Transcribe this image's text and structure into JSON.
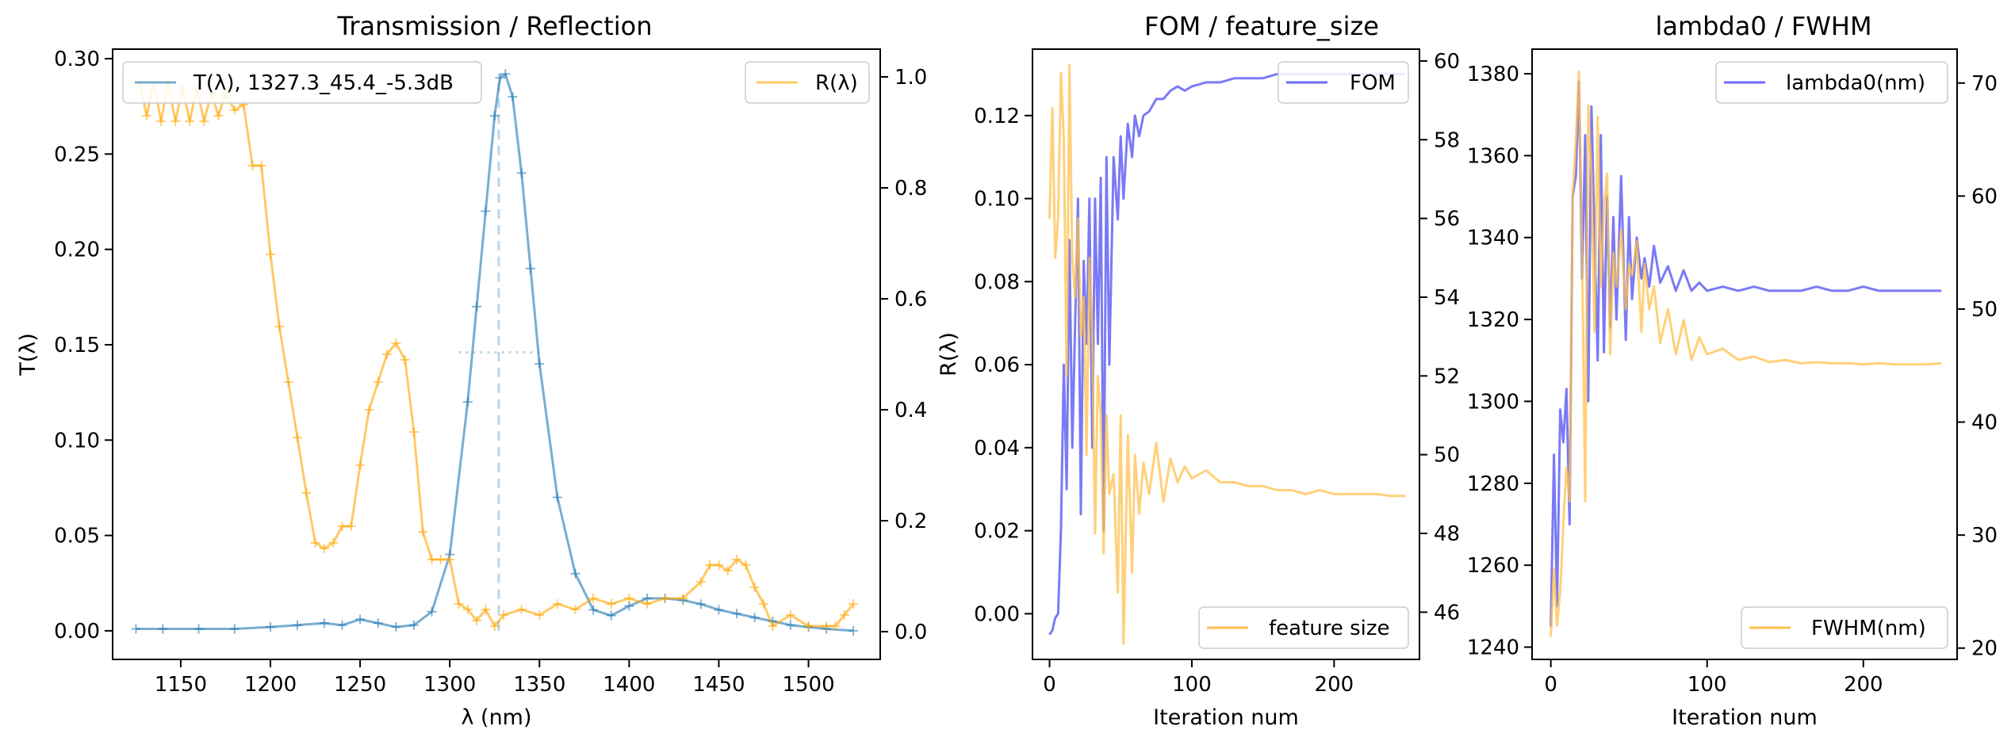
{
  "chart_data": [
    {
      "type": "line",
      "title": "Transmission / Reflection",
      "xlabel": "λ (nm)",
      "ylabel": "T(λ)",
      "xlim": [
        1112,
        1540
      ],
      "ylim": [
        -0.015,
        0.305
      ],
      "y2lim": [
        -0.05,
        1.05
      ],
      "xticks": [
        1150,
        1200,
        1250,
        1300,
        1350,
        1400,
        1450,
        1500
      ],
      "yticks": [
        0.0,
        0.05,
        0.1,
        0.15,
        0.2,
        0.25,
        0.3
      ],
      "y2ticks": [
        0.0,
        0.2,
        0.4,
        0.6,
        0.8,
        1.0
      ],
      "grid": false,
      "series": [
        {
          "name": "T(λ), 1327.3_45.4_-5.3dB",
          "axis": "left",
          "color": "#1f77b4",
          "x": [
            1125,
            1140,
            1160,
            1180,
            1200,
            1215,
            1230,
            1240,
            1250,
            1260,
            1270,
            1280,
            1290,
            1300,
            1310,
            1315,
            1320,
            1325,
            1328,
            1331,
            1335,
            1340,
            1345,
            1350,
            1360,
            1370,
            1380,
            1390,
            1400,
            1410,
            1420,
            1430,
            1440,
            1450,
            1460,
            1470,
            1480,
            1490,
            1500,
            1510,
            1525
          ],
          "values": [
            0.001,
            0.001,
            0.001,
            0.001,
            0.002,
            0.003,
            0.004,
            0.003,
            0.006,
            0.004,
            0.002,
            0.003,
            0.01,
            0.04,
            0.12,
            0.17,
            0.22,
            0.27,
            0.29,
            0.292,
            0.28,
            0.24,
            0.19,
            0.14,
            0.07,
            0.03,
            0.011,
            0.008,
            0.013,
            0.017,
            0.017,
            0.016,
            0.014,
            0.011,
            0.009,
            0.007,
            0.005,
            0.003,
            0.002,
            0.001,
            0.0
          ]
        },
        {
          "name": "R(λ)",
          "axis": "right",
          "color": "#ffa500",
          "x": [
            1127,
            1131,
            1135,
            1139,
            1143,
            1147,
            1151,
            1155,
            1159,
            1163,
            1167,
            1171,
            1175,
            1180,
            1185,
            1190,
            1195,
            1200,
            1205,
            1210,
            1215,
            1220,
            1225,
            1230,
            1235,
            1240,
            1245,
            1250,
            1255,
            1260,
            1265,
            1270,
            1275,
            1280,
            1285,
            1290,
            1295,
            1300,
            1305,
            1310,
            1315,
            1320,
            1325,
            1330,
            1340,
            1350,
            1360,
            1370,
            1380,
            1390,
            1400,
            1410,
            1420,
            1430,
            1440,
            1445,
            1450,
            1455,
            1460,
            1465,
            1470,
            1475,
            1480,
            1490,
            1500,
            1510,
            1515,
            1520,
            1525
          ],
          "values": [
            0.99,
            0.93,
            0.99,
            0.92,
            0.99,
            0.92,
            0.98,
            0.92,
            0.98,
            0.92,
            0.97,
            0.93,
            0.97,
            0.94,
            0.95,
            0.84,
            0.84,
            0.68,
            0.55,
            0.45,
            0.35,
            0.25,
            0.16,
            0.15,
            0.16,
            0.19,
            0.19,
            0.3,
            0.4,
            0.45,
            0.5,
            0.52,
            0.49,
            0.36,
            0.18,
            0.13,
            0.13,
            0.13,
            0.05,
            0.04,
            0.02,
            0.04,
            0.01,
            0.03,
            0.04,
            0.03,
            0.05,
            0.04,
            0.06,
            0.05,
            0.06,
            0.05,
            0.06,
            0.06,
            0.09,
            0.12,
            0.12,
            0.11,
            0.13,
            0.12,
            0.08,
            0.05,
            0.01,
            0.03,
            0.01,
            0.01,
            0.01,
            0.03,
            0.05
          ]
        }
      ],
      "annotations": [
        {
          "type": "vline",
          "x": 1327.3,
          "y_range": [
            0,
            0.292
          ]
        },
        {
          "type": "hline",
          "y": 0.146,
          "x_range": [
            1305,
            1350
          ]
        }
      ],
      "legend_left": "upper left",
      "legend_right": "upper right"
    },
    {
      "type": "line",
      "title": "FOM / feature_size",
      "xlabel": "Iteration num",
      "ylabel": "R(λ)",
      "xlim": [
        -12,
        260
      ],
      "ylim": [
        -0.011,
        0.136
      ],
      "y2lim": [
        44.8,
        60.3
      ],
      "xticks": [
        0,
        100,
        200
      ],
      "yticks": [
        0.0,
        0.02,
        0.04,
        0.06,
        0.08,
        0.1,
        0.12
      ],
      "y2ticks": [
        46,
        48,
        50,
        52,
        54,
        56,
        58,
        60
      ],
      "series": [
        {
          "name": "FOM",
          "axis": "left",
          "color": "#6b6bf5",
          "x": [
            0,
            2,
            4,
            6,
            8,
            10,
            12,
            14,
            16,
            18,
            20,
            22,
            24,
            26,
            28,
            30,
            32,
            34,
            36,
            38,
            40,
            42,
            45,
            48,
            50,
            52,
            55,
            58,
            60,
            63,
            66,
            70,
            75,
            80,
            85,
            90,
            95,
            100,
            110,
            120,
            130,
            140,
            150,
            160,
            170,
            180,
            190,
            200,
            210,
            220,
            230,
            240,
            250
          ],
          "values": [
            -0.005,
            -0.004,
            -0.001,
            0.0,
            0.02,
            0.06,
            0.03,
            0.09,
            0.04,
            0.07,
            0.1,
            0.024,
            0.085,
            0.065,
            0.1,
            0.04,
            0.1,
            0.065,
            0.105,
            0.02,
            0.11,
            0.06,
            0.11,
            0.095,
            0.115,
            0.1,
            0.118,
            0.11,
            0.12,
            0.115,
            0.12,
            0.121,
            0.124,
            0.124,
            0.126,
            0.127,
            0.126,
            0.127,
            0.128,
            0.128,
            0.129,
            0.129,
            0.129,
            0.13,
            0.13,
            0.13,
            0.13,
            0.13,
            0.13,
            0.13,
            0.13,
            0.13,
            0.13
          ]
        },
        {
          "name": "feature size",
          "axis": "right",
          "color": "#ffc04d",
          "x": [
            0,
            2,
            4,
            6,
            8,
            10,
            12,
            14,
            16,
            18,
            20,
            22,
            24,
            26,
            28,
            30,
            32,
            34,
            36,
            38,
            40,
            42,
            45,
            48,
            50,
            52,
            55,
            58,
            60,
            63,
            66,
            70,
            75,
            80,
            85,
            90,
            95,
            100,
            110,
            120,
            130,
            140,
            150,
            160,
            170,
            180,
            190,
            200,
            210,
            220,
            230,
            240,
            250
          ],
          "values": [
            56,
            58.8,
            55,
            56,
            59.7,
            58,
            52,
            59.9,
            55,
            54,
            56,
            53,
            54,
            50,
            55,
            53,
            48,
            52,
            51,
            47.5,
            51,
            49,
            49.5,
            46.5,
            51,
            45.2,
            50.5,
            47,
            50,
            48.5,
            49.8,
            49,
            50.3,
            48.8,
            49.9,
            49.3,
            49.7,
            49.4,
            49.6,
            49.3,
            49.3,
            49.2,
            49.2,
            49.1,
            49.1,
            49.0,
            49.1,
            49.0,
            49.0,
            49.0,
            49.0,
            48.95,
            48.95
          ]
        }
      ],
      "legend_left": "upper right",
      "legend_right": "lower right"
    },
    {
      "type": "line",
      "title": "lambda0 / FWHM",
      "xlabel": "Iteration num",
      "ylabel": "",
      "xlim": [
        -12,
        260
      ],
      "ylim": [
        1237,
        1386
      ],
      "y2lim": [
        19,
        73
      ],
      "xticks": [
        0,
        100,
        200
      ],
      "yticks": [
        1240,
        1260,
        1280,
        1300,
        1320,
        1340,
        1360,
        1380
      ],
      "y2ticks": [
        20,
        30,
        40,
        50,
        60,
        70
      ],
      "series": [
        {
          "name": "lambda0(nm)",
          "axis": "left",
          "color": "#6b6bf5",
          "x": [
            0,
            2,
            4,
            6,
            8,
            10,
            12,
            14,
            16,
            18,
            20,
            22,
            24,
            26,
            28,
            30,
            32,
            34,
            36,
            38,
            40,
            42,
            45,
            48,
            50,
            52,
            55,
            58,
            60,
            63,
            66,
            70,
            75,
            80,
            85,
            90,
            95,
            100,
            110,
            120,
            130,
            140,
            150,
            160,
            170,
            180,
            190,
            200,
            210,
            220,
            230,
            240,
            250
          ],
          "values": [
            1245,
            1287,
            1250,
            1298,
            1290,
            1303,
            1270,
            1350,
            1355,
            1378,
            1330,
            1365,
            1300,
            1372,
            1340,
            1310,
            1365,
            1312,
            1350,
            1318,
            1345,
            1320,
            1355,
            1315,
            1345,
            1325,
            1340,
            1330,
            1335,
            1328,
            1338,
            1329,
            1333,
            1327,
            1332,
            1327,
            1329,
            1327,
            1328,
            1327,
            1328,
            1327,
            1327,
            1327,
            1328,
            1327,
            1327,
            1328,
            1327,
            1327,
            1327,
            1327,
            1327
          ]
        },
        {
          "name": "FWHM(nm)",
          "axis": "right",
          "color": "#ffc04d",
          "x": [
            0,
            2,
            4,
            6,
            8,
            10,
            12,
            14,
            16,
            18,
            20,
            22,
            24,
            26,
            28,
            30,
            32,
            34,
            36,
            38,
            40,
            42,
            45,
            48,
            50,
            52,
            55,
            58,
            60,
            63,
            66,
            70,
            75,
            80,
            85,
            90,
            95,
            100,
            110,
            120,
            130,
            140,
            150,
            160,
            170,
            180,
            190,
            200,
            210,
            220,
            230,
            240,
            250
          ],
          "values": [
            21,
            27,
            22,
            25,
            31,
            36,
            33,
            60,
            65,
            71,
            55,
            33,
            68,
            62,
            48,
            67,
            52,
            59,
            62,
            46,
            55,
            52,
            57,
            50,
            54,
            53,
            56,
            48,
            54,
            50,
            52,
            47,
            50,
            46,
            49,
            45.5,
            47.5,
            46,
            46.5,
            45.5,
            45.8,
            45.3,
            45.5,
            45.2,
            45.3,
            45.2,
            45.2,
            45.1,
            45.2,
            45.1,
            45.1,
            45.1,
            45.2
          ]
        }
      ],
      "legend_left": "upper right",
      "legend_right": "lower right"
    }
  ]
}
